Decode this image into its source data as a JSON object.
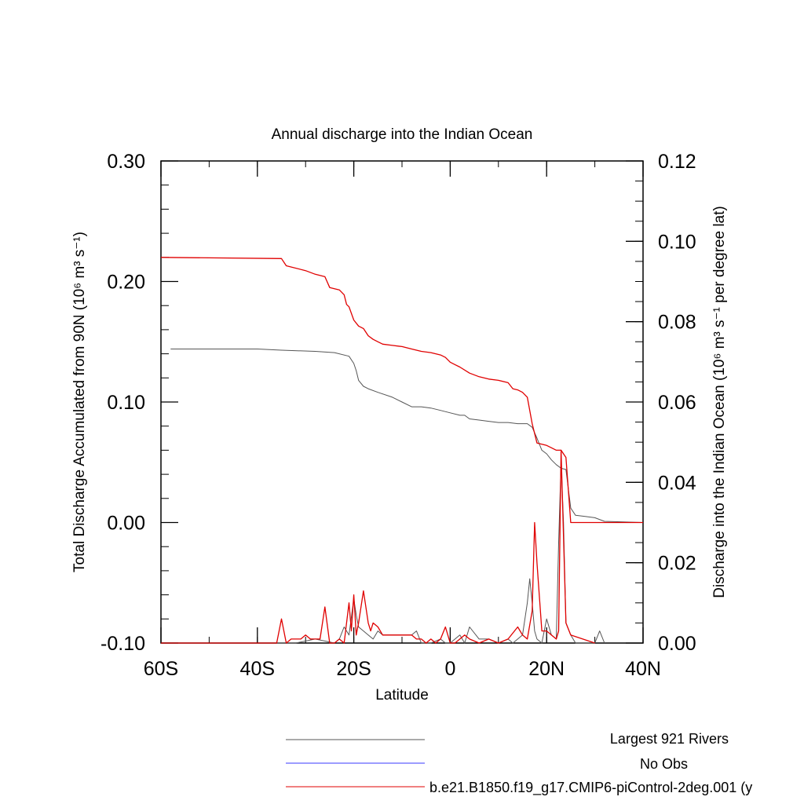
{
  "chart_data": {
    "type": "line",
    "title": "Annual discharge into the Indian Ocean",
    "xlabel": "Latitude",
    "ylabel_left": "Total Discharge Accumulated from 90N (10⁶ m³ s⁻¹)",
    "ylabel_right": "Discharge into the Indian Ocean (10⁶ m³ s⁻¹ per degree lat)",
    "xlim": [
      -60,
      40
    ],
    "ylim_left": [
      -0.1,
      0.3
    ],
    "ylim_right": [
      0.0,
      0.12
    ],
    "x_ticks": [
      -60,
      -40,
      -20,
      0,
      20,
      40
    ],
    "x_tick_labels": [
      "60S",
      "40S",
      "20S",
      "0",
      "20N",
      "40N"
    ],
    "y_left_ticks": [
      -0.1,
      0.0,
      0.1,
      0.2,
      0.3
    ],
    "y_left_tick_labels": [
      "-0.10",
      "0.00",
      "0.10",
      "0.20",
      "0.30"
    ],
    "y_right_ticks": [
      0.0,
      0.02,
      0.04,
      0.06,
      0.08,
      0.1,
      0.12
    ],
    "y_right_tick_labels": [
      "0.00",
      "0.02",
      "0.04",
      "0.06",
      "0.08",
      "0.10",
      "0.12"
    ],
    "legend": [
      {
        "label": "Largest 921 Rivers",
        "color": "#555555"
      },
      {
        "label": "No Obs",
        "color": "#3a3aff"
      },
      {
        "label": "b.e21.B1850.f19_g17.CMIP6-piControl-2deg.001 (y",
        "color": "#e00000"
      }
    ],
    "series": [
      {
        "axis": "left",
        "color": "#555555",
        "x": [
          -58,
          -40,
          -35,
          -28,
          -24,
          -21,
          -20,
          -19.5,
          -19,
          -18,
          -17,
          -15,
          -12,
          -10,
          -8,
          -6,
          -4,
          -2,
          0,
          2,
          3,
          4,
          6,
          8,
          10,
          12,
          14,
          16,
          17,
          18,
          19,
          20,
          21,
          22,
          23,
          24,
          25,
          26,
          28,
          30,
          32,
          40
        ],
        "y": [
          0.144,
          0.144,
          0.143,
          0.142,
          0.141,
          0.138,
          0.132,
          0.126,
          0.118,
          0.113,
          0.111,
          0.108,
          0.104,
          0.1,
          0.096,
          0.096,
          0.095,
          0.093,
          0.091,
          0.089,
          0.089,
          0.086,
          0.085,
          0.084,
          0.083,
          0.083,
          0.082,
          0.082,
          0.079,
          0.07,
          0.06,
          0.057,
          0.052,
          0.048,
          0.045,
          0.044,
          0.012,
          0.006,
          0.005,
          0.004,
          0.001,
          0.0
        ]
      },
      {
        "axis": "left",
        "color": "#e00000",
        "x": [
          -60,
          -35,
          -34,
          -30,
          -28,
          -26,
          -25,
          -24,
          -23,
          -22,
          -21.5,
          -21,
          -20,
          -19,
          -18,
          -17,
          -16,
          -15,
          -14,
          -12,
          -10,
          -8,
          -6,
          -4,
          -2,
          -1,
          0,
          1,
          2,
          4,
          6,
          8,
          10,
          12,
          13,
          14,
          15,
          16,
          17,
          18,
          20,
          21,
          22,
          23,
          24,
          25,
          30,
          40
        ],
        "y": [
          0.22,
          0.219,
          0.213,
          0.209,
          0.206,
          0.204,
          0.195,
          0.194,
          0.193,
          0.189,
          0.181,
          0.179,
          0.168,
          0.163,
          0.161,
          0.155,
          0.152,
          0.15,
          0.148,
          0.147,
          0.146,
          0.144,
          0.142,
          0.141,
          0.139,
          0.137,
          0.133,
          0.131,
          0.129,
          0.124,
          0.121,
          0.119,
          0.118,
          0.116,
          0.111,
          0.11,
          0.108,
          0.104,
          0.082,
          0.066,
          0.064,
          0.062,
          0.06,
          0.06,
          0.054,
          0.0,
          0.0,
          0.0
        ]
      },
      {
        "axis": "right",
        "color": "#555555",
        "x": [
          -60,
          -40,
          -32,
          -28,
          -24,
          -23,
          -22,
          -21,
          -20,
          -19.5,
          -19,
          -18,
          -17,
          -16,
          -15,
          -14,
          -12,
          -10,
          -8,
          -7,
          -6,
          -4,
          -2,
          -1,
          0,
          1,
          2,
          3,
          4,
          6,
          8,
          10,
          12,
          13,
          14,
          15,
          16,
          16.5,
          17,
          17.5,
          18,
          19,
          20,
          21,
          22,
          22.5,
          23,
          23.5,
          24,
          25,
          26,
          28,
          30,
          31,
          32
        ],
        "y": [
          0.0,
          0.0,
          0.0,
          0.001,
          0.0,
          0.001,
          0.004,
          0.002,
          0.011,
          0.007,
          0.004,
          0.003,
          0.002,
          0.001,
          0.003,
          0.002,
          0.002,
          0.002,
          0.002,
          0.003,
          0.0,
          0.0,
          0.001,
          0.0,
          0.0,
          0.001,
          0.002,
          0.0,
          0.004,
          0.001,
          0.001,
          0.0,
          0.001,
          0.0,
          0.001,
          0.002,
          0.01,
          0.016,
          0.01,
          0.003,
          0.001,
          0.0,
          0.006,
          0.002,
          0.001,
          0.025,
          0.045,
          0.03,
          0.005,
          0.002,
          0.0,
          0.0,
          0.0,
          0.003,
          0.0
        ]
      },
      {
        "axis": "right",
        "color": "#e00000",
        "x": [
          -60,
          -36,
          -35,
          -34,
          -33,
          -32,
          -31,
          -30,
          -29,
          -28,
          -27,
          -26,
          -25,
          -24,
          -23,
          -22,
          -21,
          -20.5,
          -20,
          -19.5,
          -19,
          -18,
          -17,
          -16.5,
          -16,
          -15,
          -14,
          -13,
          -12,
          -10,
          -8,
          -7,
          -6,
          -5,
          -4,
          -3,
          -2,
          -1,
          0,
          1,
          2,
          3,
          4,
          6,
          8,
          10,
          12,
          14,
          15,
          16,
          17,
          17.5,
          18,
          19,
          20,
          21,
          22,
          22.5,
          23,
          24,
          25,
          30
        ],
        "y": [
          0.0,
          0.0,
          0.006,
          0.0,
          0.001,
          0.001,
          0.001,
          0.002,
          0.001,
          0.001,
          0.001,
          0.009,
          0.0,
          0.0,
          0.001,
          0.0,
          0.01,
          0.003,
          0.012,
          0.002,
          0.005,
          0.013,
          0.005,
          0.003,
          0.005,
          0.004,
          0.002,
          0.002,
          0.002,
          0.002,
          0.002,
          0.001,
          0.001,
          0.0,
          0.001,
          0.0,
          0.001,
          0.004,
          0.0,
          0.0,
          0.001,
          0.002,
          0.001,
          0.0,
          0.001,
          0.0,
          0.001,
          0.004,
          0.002,
          0.001,
          0.008,
          0.03,
          0.02,
          0.003,
          0.003,
          0.002,
          0.001,
          0.003,
          0.048,
          0.005,
          0.002,
          0.0
        ]
      }
    ]
  }
}
